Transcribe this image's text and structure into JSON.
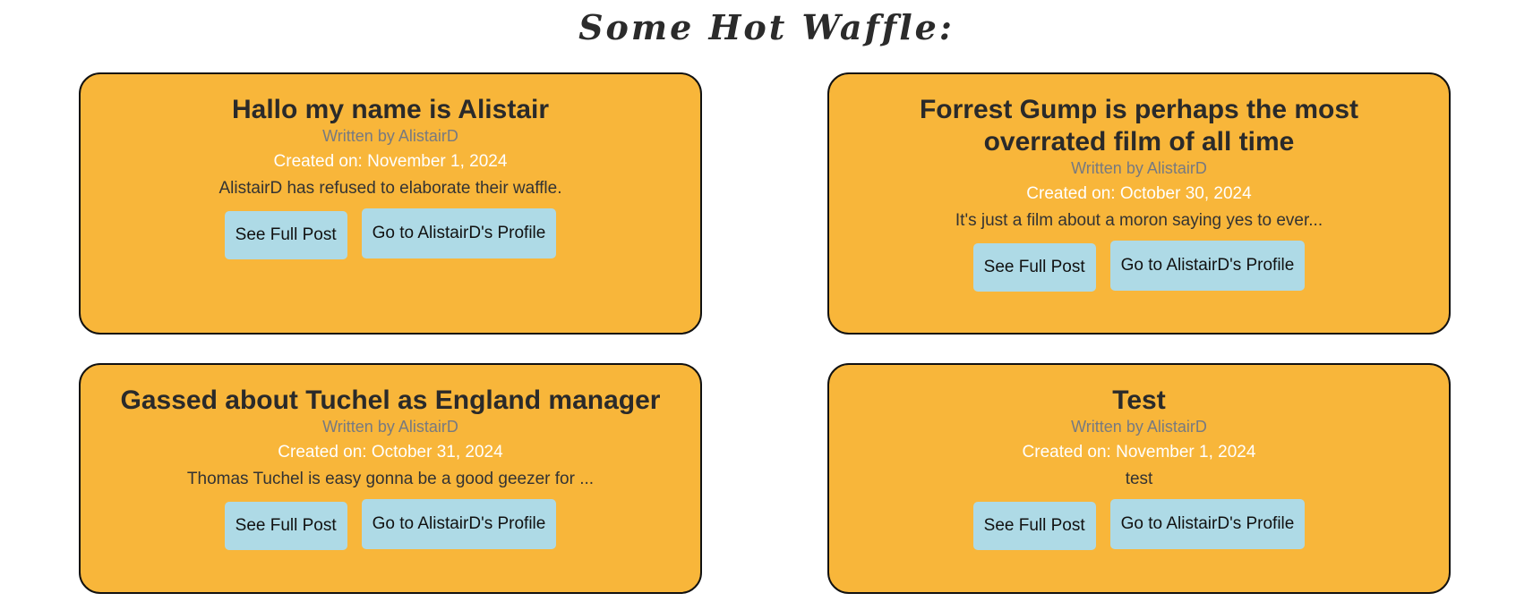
{
  "page": {
    "title": "Some Hot Waffle:"
  },
  "posts": [
    {
      "title": "Hallo my name is Alistair",
      "author": "Written by AlistairD",
      "created": "Created on: November 1, 2024",
      "excerpt": "AlistairD has refused to elaborate their waffle.",
      "see_label": "See Full Post",
      "profile_label": "Go to AlistairD's Profile"
    },
    {
      "title": "Forrest Gump is perhaps the most overrated film of all time",
      "author": "Written by AlistairD",
      "created": "Created on: October 30, 2024",
      "excerpt": "It's just a film about a moron saying yes to ever...",
      "see_label": "See Full Post",
      "profile_label": "Go to AlistairD's Profile"
    },
    {
      "title": "Gassed about Tuchel as England manager",
      "author": "Written by AlistairD",
      "created": "Created on: October 31, 2024",
      "excerpt": "Thomas Tuchel is easy gonna be a good geezer for ...",
      "see_label": "See Full Post",
      "profile_label": "Go to AlistairD's Profile"
    },
    {
      "title": "Test",
      "author": "Written by AlistairD",
      "created": "Created on: November 1, 2024",
      "excerpt": "test",
      "see_label": "See Full Post",
      "profile_label": "Go to AlistairD's Profile"
    }
  ],
  "colors": {
    "card_background": "#f8b63a",
    "button_background": "#aedae6",
    "created_text": "#ffffff",
    "author_text": "#777a80"
  }
}
